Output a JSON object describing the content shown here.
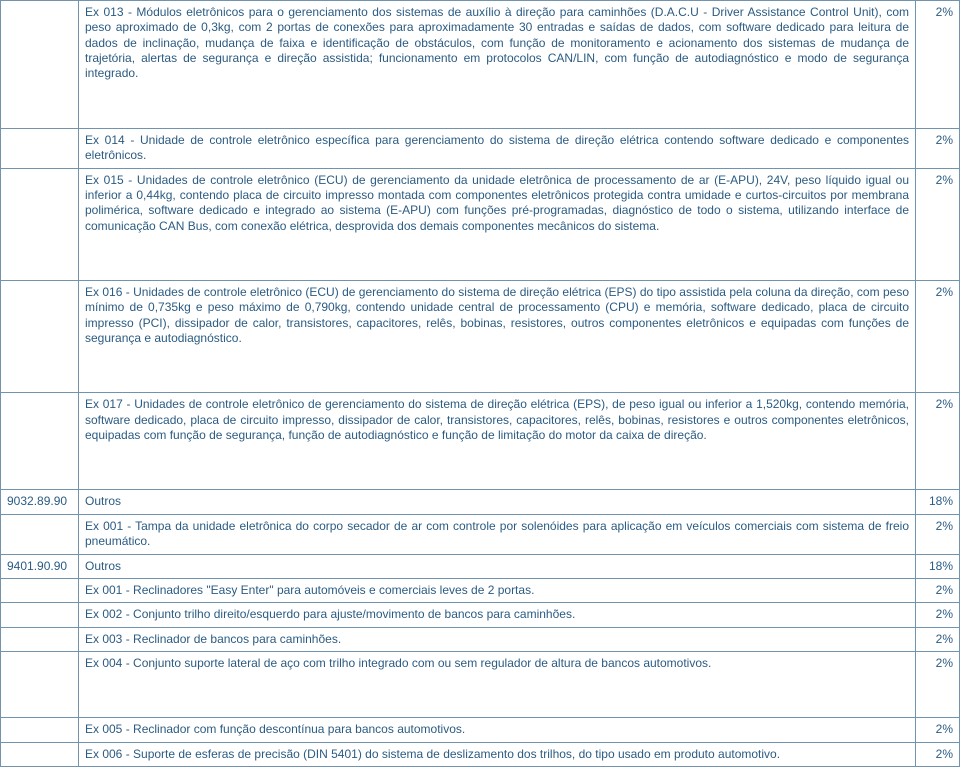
{
  "rows": [
    {
      "code": "",
      "desc": "Ex 013 - Módulos eletrônicos para o gerenciamento dos sistemas de auxílio à direção para caminhões (D.A.C.U - Driver Assistance Control Unit), com peso aproximado de 0,3kg, com 2 portas de conexões para aproximadamente 30 entradas e saídas de dados, com software dedicado para leitura de dados de inclinação, mudança de faixa e identificação de obstáculos, com função de monitoramento e acionamento dos sistemas de mudança de trajetória, alertas de segurança e direção assistida; funcionamento em protocolos CAN/LIN, com função de autodiagnóstico e modo de segurança integrado.",
      "pct": "2%",
      "tall": true
    },
    {
      "code": "",
      "desc": "Ex 014 - Unidade de controle eletrônico específica para gerenciamento do sistema de direção elétrica contendo software dedicado e componentes eletrônicos.",
      "pct": "2%"
    },
    {
      "code": "",
      "desc": "Ex 015 - Unidades de controle eletrônico (ECU) de gerenciamento da unidade eletrônica de processamento de ar (E-APU), 24V, peso líquido igual ou inferior a 0,44kg, contendo placa de circuito impresso montada com componentes eletrônicos protegida contra umidade e curtos-circuitos por membrana polimérica, software dedicado e integrado ao sistema (E-APU) com funções pré-programadas, diagnóstico de todo o sistema, utilizando interface de comunicação CAN Bus, com conexão elétrica, desprovida dos demais componentes mecânicos do sistema.",
      "pct": "2%",
      "tall": true
    },
    {
      "code": "",
      "desc": "Ex 016 - Unidades de controle eletrônico (ECU) de gerenciamento do sistema de direção elétrica (EPS) do tipo assistida pela coluna da direção, com peso mínimo de 0,735kg e peso máximo de 0,790kg, contendo unidade central de processamento (CPU) e memória, software dedicado, placa de circuito impresso (PCI), dissipador de calor, transistores, capacitores, relês, bobinas, resistores, outros componentes eletrônicos e equipadas com funções de segurança e autodiagnóstico.",
      "pct": "2%",
      "tall": true
    },
    {
      "code": "",
      "desc": "Ex 017 - Unidades de controle eletrônico de gerenciamento do sistema de direção elétrica (EPS), de peso igual ou inferior a 1,520kg, contendo memória, software dedicado, placa de circuito impresso, dissipador de calor, transistores, capacitores, relês, bobinas, resistores e outros componentes eletrônicos, equipadas com função de segurança, função de autodiagnóstico e função de limitação do motor da caixa de direção.",
      "pct": "2%",
      "tall": true
    },
    {
      "code": "9032.89.90",
      "desc": "Outros",
      "pct": "18%"
    },
    {
      "code": "",
      "desc": "Ex 001 - Tampa da unidade eletrônica do corpo secador de ar com controle por solenóides para aplicação em veículos comerciais com sistema de freio pneumático.",
      "pct": "2%"
    },
    {
      "code": "9401.90.90",
      "desc": "Outros",
      "pct": "18%"
    },
    {
      "code": "",
      "desc": "Ex 001 - Reclinadores \"Easy Enter\" para automóveis e comerciais leves de 2 portas.",
      "pct": "2%"
    },
    {
      "code": "",
      "desc": "Ex 002 - Conjunto trilho direito/esquerdo para ajuste/movimento de bancos para caminhões.",
      "pct": "2%"
    },
    {
      "code": "",
      "desc": "Ex 003 - Reclinador de bancos para caminhões.",
      "pct": "2%"
    },
    {
      "code": "",
      "desc": "Ex 004 - Conjunto suporte lateral de aço com trilho integrado com ou sem regulador de altura de bancos automotivos.",
      "pct": "2%",
      "tall": true
    },
    {
      "code": "",
      "desc": "Ex 005 - Reclinador com função descontínua para bancos automotivos.",
      "pct": "2%"
    },
    {
      "code": "",
      "desc": "Ex 006 - Suporte de esferas de precisão (DIN 5401) do sistema de deslizamento dos trilhos, do tipo usado em produto automotivo.",
      "pct": "2%"
    }
  ]
}
